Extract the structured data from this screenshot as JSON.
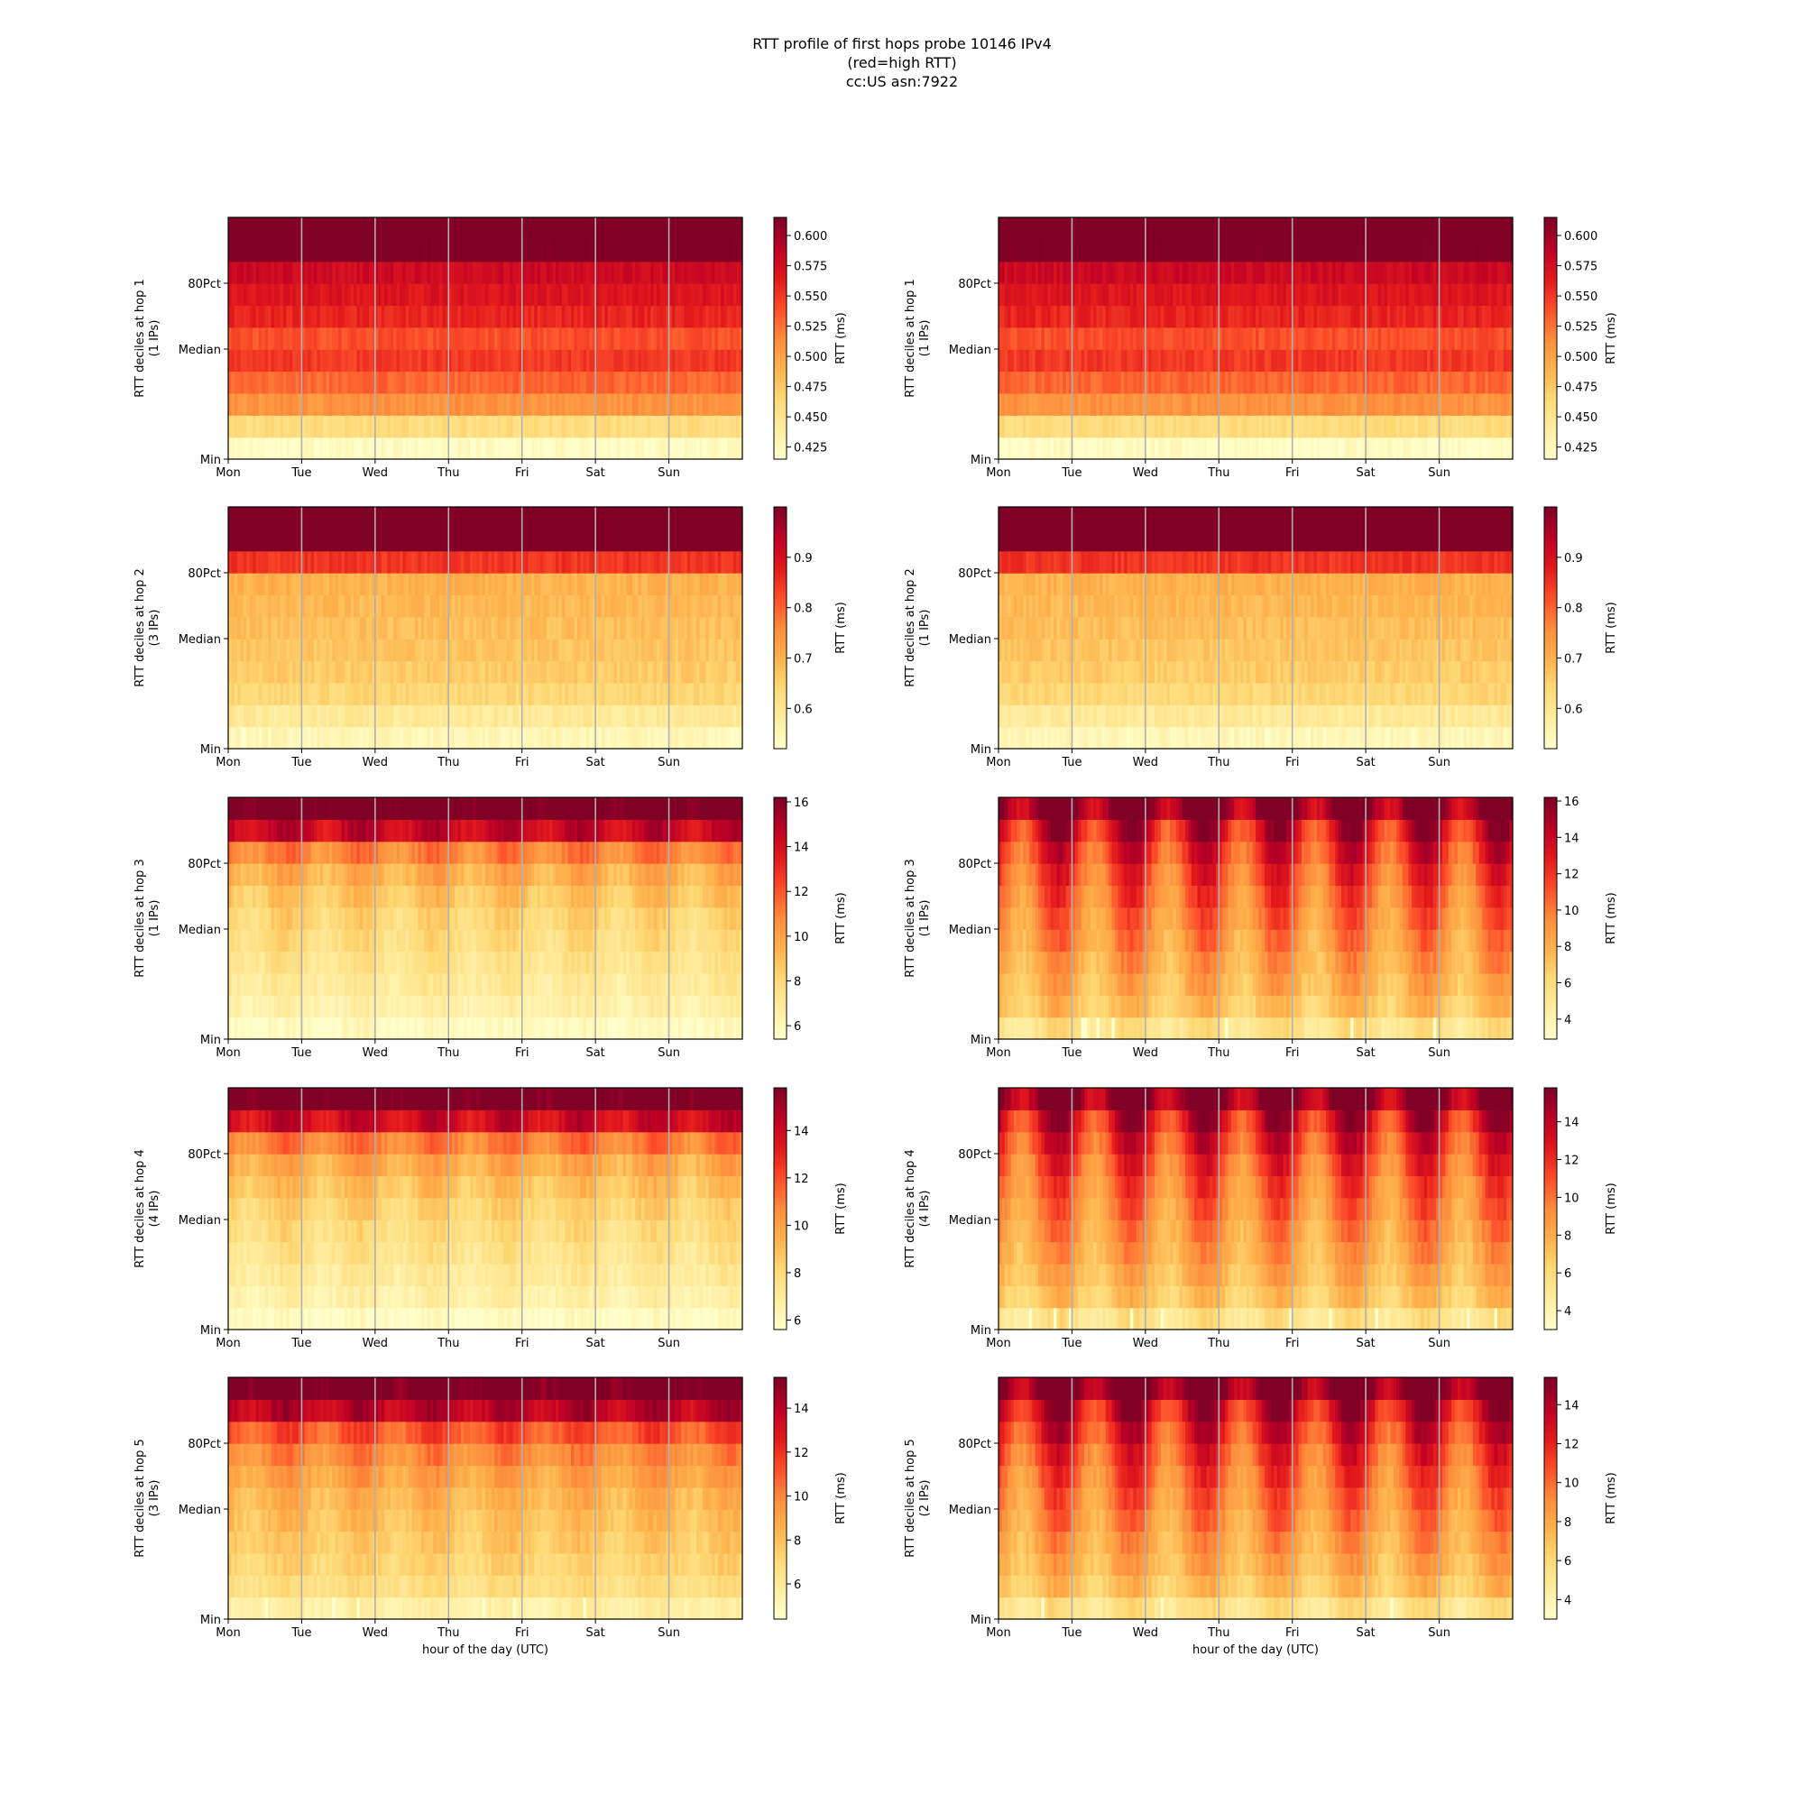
{
  "figure": {
    "title_lines": [
      "RTT profile of first hops probe 10146 IPv4",
      "(red=high RTT)",
      "cc:US asn:7922"
    ]
  },
  "chart_data": [
    {
      "type": "heatmap",
      "col": 0,
      "row": 0,
      "hop": 1,
      "ylabel": "RTT deciles at hop 1",
      "ylabel2": "(1 IPs)",
      "yticks": [
        "Min",
        "Median",
        "80Pct"
      ],
      "xticks": [
        "Mon",
        "Tue",
        "Wed",
        "Thu",
        "Fri",
        "Sat",
        "Sun"
      ],
      "xlabel": "",
      "colorbar_label": "RTT (ms)",
      "colorbar_ticks": [
        "0.425",
        "0.450",
        "0.475",
        "0.500",
        "0.525",
        "0.550",
        "0.575",
        "0.600"
      ],
      "vmin": 0.415,
      "vmax": 0.615,
      "pattern": "flat",
      "deciles_ms": [
        0.42,
        0.46,
        0.51,
        0.53,
        0.55,
        0.54,
        0.56,
        0.57,
        0.58,
        0.62,
        0.63
      ]
    },
    {
      "type": "heatmap",
      "col": 1,
      "row": 0,
      "hop": 1,
      "ylabel": "RTT deciles at hop 1",
      "ylabel2": "(1 IPs)",
      "yticks": [
        "Min",
        "Median",
        "80Pct"
      ],
      "xticks": [
        "Mon",
        "Tue",
        "Wed",
        "Thu",
        "Fri",
        "Sat",
        "Sun"
      ],
      "xlabel": "",
      "colorbar_label": "RTT (ms)",
      "colorbar_ticks": [
        "0.425",
        "0.450",
        "0.475",
        "0.500",
        "0.525",
        "0.550",
        "0.575",
        "0.600"
      ],
      "vmin": 0.415,
      "vmax": 0.615,
      "pattern": "flat",
      "deciles_ms": [
        0.42,
        0.46,
        0.51,
        0.53,
        0.55,
        0.54,
        0.56,
        0.57,
        0.58,
        0.62,
        0.63
      ]
    },
    {
      "type": "heatmap",
      "col": 0,
      "row": 1,
      "hop": 2,
      "ylabel": "RTT deciles at hop 2",
      "ylabel2": "(3 IPs)",
      "yticks": [
        "Min",
        "Median",
        "80Pct"
      ],
      "xticks": [
        "Mon",
        "Tue",
        "Wed",
        "Thu",
        "Fri",
        "Sat",
        "Sun"
      ],
      "xlabel": "",
      "colorbar_label": "RTT (ms)",
      "colorbar_ticks": [
        "0.6",
        "0.7",
        "0.8",
        "0.9"
      ],
      "vmin": 0.52,
      "vmax": 1.0,
      "pattern": "flat",
      "deciles_ms": [
        0.55,
        0.59,
        0.64,
        0.66,
        0.67,
        0.68,
        0.69,
        0.7,
        0.85,
        1.05,
        1.1
      ]
    },
    {
      "type": "heatmap",
      "col": 1,
      "row": 1,
      "hop": 2,
      "ylabel": "RTT deciles at hop 2",
      "ylabel2": "(1 IPs)",
      "yticks": [
        "Min",
        "Median",
        "80Pct"
      ],
      "xticks": [
        "Mon",
        "Tue",
        "Wed",
        "Thu",
        "Fri",
        "Sat",
        "Sun"
      ],
      "xlabel": "",
      "colorbar_label": "RTT (ms)",
      "colorbar_ticks": [
        "0.6",
        "0.7",
        "0.8",
        "0.9"
      ],
      "vmin": 0.52,
      "vmax": 1.0,
      "pattern": "flat",
      "deciles_ms": [
        0.55,
        0.59,
        0.64,
        0.66,
        0.67,
        0.68,
        0.69,
        0.7,
        0.85,
        1.05,
        1.1
      ]
    },
    {
      "type": "heatmap",
      "col": 0,
      "row": 2,
      "hop": 3,
      "ylabel": "RTT deciles at hop 3",
      "ylabel2": "(1 IPs)",
      "yticks": [
        "Min",
        "Median",
        "80Pct"
      ],
      "xticks": [
        "Mon",
        "Tue",
        "Wed",
        "Thu",
        "Fri",
        "Sat",
        "Sun"
      ],
      "xlabel": "",
      "colorbar_label": "RTT (ms)",
      "colorbar_ticks": [
        "6",
        "8",
        "10",
        "12",
        "14",
        "16"
      ],
      "vmin": 5.4,
      "vmax": 16.2,
      "pattern": "mild",
      "deciles_ms": [
        5.8,
        6.5,
        7.0,
        7.4,
        7.8,
        8.2,
        8.8,
        9.6,
        11.0,
        14.5,
        17.0
      ]
    },
    {
      "type": "heatmap",
      "col": 1,
      "row": 2,
      "hop": 3,
      "ylabel": "RTT deciles at hop 3",
      "ylabel2": "(1 IPs)",
      "yticks": [
        "Min",
        "Median",
        "80Pct"
      ],
      "xticks": [
        "Mon",
        "Tue",
        "Wed",
        "Thu",
        "Fri",
        "Sat",
        "Sun"
      ],
      "xlabel": "",
      "colorbar_label": "RTT (ms)",
      "colorbar_ticks": [
        "4",
        "6",
        "8",
        "10",
        "12",
        "14",
        "16"
      ],
      "vmin": 2.9,
      "vmax": 16.2,
      "pattern": "diurnal",
      "deciles_ms": [
        5.5,
        7.2,
        8.0,
        8.6,
        9.2,
        9.8,
        10.5,
        11.3,
        12.3,
        13.5,
        16.5
      ]
    },
    {
      "type": "heatmap",
      "col": 0,
      "row": 3,
      "hop": 4,
      "ylabel": "RTT deciles at hop 4",
      "ylabel2": "(4 IPs)",
      "yticks": [
        "Min",
        "Median",
        "80Pct"
      ],
      "xticks": [
        "Mon",
        "Tue",
        "Wed",
        "Thu",
        "Fri",
        "Sat",
        "Sun"
      ],
      "xlabel": "",
      "colorbar_label": "RTT (ms)",
      "colorbar_ticks": [
        "6",
        "8",
        "10",
        "12",
        "14"
      ],
      "vmin": 5.6,
      "vmax": 15.8,
      "pattern": "mild",
      "deciles_ms": [
        5.9,
        6.6,
        7.1,
        7.5,
        7.9,
        8.3,
        8.9,
        9.7,
        11.0,
        14.0,
        16.5
      ]
    },
    {
      "type": "heatmap",
      "col": 1,
      "row": 3,
      "hop": 4,
      "ylabel": "RTT deciles at hop 4",
      "ylabel2": "(4 IPs)",
      "yticks": [
        "Min",
        "Median",
        "80Pct"
      ],
      "xticks": [
        "Mon",
        "Tue",
        "Wed",
        "Thu",
        "Fri",
        "Sat",
        "Sun"
      ],
      "xlabel": "",
      "colorbar_label": "RTT (ms)",
      "colorbar_ticks": [
        "4",
        "6",
        "8",
        "10",
        "12",
        "14"
      ],
      "vmin": 3.0,
      "vmax": 15.8,
      "pattern": "diurnal",
      "deciles_ms": [
        5.4,
        7.0,
        7.8,
        8.4,
        9.0,
        9.6,
        10.2,
        11.0,
        12.0,
        13.2,
        16.0
      ]
    },
    {
      "type": "heatmap",
      "col": 0,
      "row": 4,
      "hop": 5,
      "ylabel": "RTT deciles at hop 5",
      "ylabel2": "(3 IPs)",
      "yticks": [
        "Min",
        "Median",
        "80Pct"
      ],
      "xticks": [
        "Mon",
        "Tue",
        "Wed",
        "Thu",
        "Fri",
        "Sat",
        "Sun"
      ],
      "xlabel": "hour of the day (UTC)",
      "colorbar_label": "RTT (ms)",
      "colorbar_ticks": [
        "6",
        "8",
        "10",
        "12",
        "14"
      ],
      "vmin": 4.4,
      "vmax": 15.4,
      "pattern": "mild",
      "deciles_ms": [
        5.6,
        6.8,
        7.3,
        7.7,
        8.1,
        8.5,
        9.1,
        9.9,
        11.2,
        14.0,
        16.0
      ]
    },
    {
      "type": "heatmap",
      "col": 1,
      "row": 4,
      "hop": 5,
      "ylabel": "RTT deciles at hop 5",
      "ylabel2": "(2 IPs)",
      "yticks": [
        "Min",
        "Median",
        "80Pct"
      ],
      "xticks": [
        "Mon",
        "Tue",
        "Wed",
        "Thu",
        "Fri",
        "Sat",
        "Sun"
      ],
      "xlabel": "hour of the day (UTC)",
      "colorbar_label": "RTT (ms)",
      "colorbar_ticks": [
        "4",
        "6",
        "8",
        "10",
        "12",
        "14"
      ],
      "vmin": 3.0,
      "vmax": 15.4,
      "pattern": "diurnal",
      "deciles_ms": [
        5.4,
        7.0,
        7.8,
        8.4,
        9.0,
        9.6,
        10.2,
        11.0,
        12.0,
        13.2,
        16.0
      ]
    }
  ]
}
